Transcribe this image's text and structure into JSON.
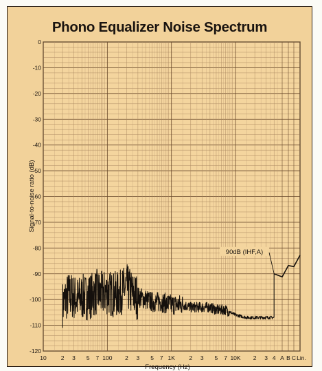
{
  "chart_data": {
    "type": "line",
    "title": "Phono Equalizer Noise Spectrum",
    "xlabel": "Frequency (Hz)",
    "ylabel": "Signal-to-noise ratio (dB)",
    "xscale": "log",
    "xlim": [
      10,
      100000
    ],
    "ylim": [
      -120,
      0
    ],
    "grid": true,
    "y_ticks": [
      "0",
      "-10",
      "-20",
      "-30",
      "-40",
      "-50",
      "-60",
      "-70",
      "-80",
      "-90",
      "-100",
      "-110",
      "-120"
    ],
    "x_ticks": [
      {
        "label": "10",
        "f": 10
      },
      {
        "label": "2",
        "f": 20
      },
      {
        "label": "3",
        "f": 30
      },
      {
        "label": "5",
        "f": 50
      },
      {
        "label": "7",
        "f": 70
      },
      {
        "label": "100",
        "f": 100
      },
      {
        "label": "2",
        "f": 200
      },
      {
        "label": "3",
        "f": 300
      },
      {
        "label": "5",
        "f": 500
      },
      {
        "label": "7",
        "f": 700
      },
      {
        "label": "1K",
        "f": 1000
      },
      {
        "label": "2",
        "f": 2000
      },
      {
        "label": "3",
        "f": 3000
      },
      {
        "label": "5",
        "f": 5000
      },
      {
        "label": "7",
        "f": 7000
      },
      {
        "label": "10K",
        "f": 10000
      },
      {
        "label": "2",
        "f": 20000
      },
      {
        "label": "3",
        "f": 30000
      },
      {
        "label": "4",
        "f": 40000
      }
    ],
    "weighting_labels": [
      "A",
      "B",
      "C",
      "Lin."
    ],
    "spectrum": {
      "x": [
        20,
        22,
        25,
        30,
        35,
        40,
        50,
        60,
        70,
        80,
        100,
        120,
        150,
        200,
        250,
        300,
        400,
        500,
        700,
        1000,
        1500,
        2000,
        3000,
        4000,
        5000,
        7000,
        10000,
        15000,
        20000,
        30000,
        40000
      ],
      "y": [
        -102,
        -100,
        -98,
        -99,
        -100,
        -99,
        -99,
        -98,
        -97,
        -98,
        -97,
        -98,
        -98,
        -95,
        -98,
        -99,
        -100,
        -101,
        -101,
        -102,
        -102,
        -103,
        -103,
        -103,
        -104,
        -104,
        -106,
        -107,
        -107,
        -107,
        -107
      ]
    },
    "weighted_levels": {
      "labels": [
        "A",
        "B",
        "C",
        "Lin."
      ],
      "values": [
        -90,
        -88,
        -86,
        -84
      ]
    },
    "annotation": {
      "text": "90dB (IHF,A)",
      "y": -90
    }
  }
}
